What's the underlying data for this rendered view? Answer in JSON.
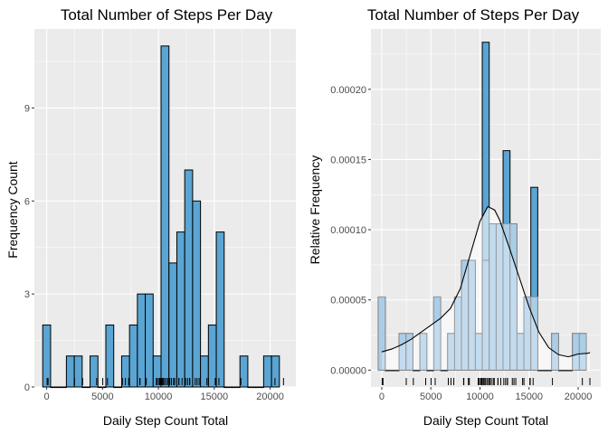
{
  "chart_data": [
    {
      "type": "bar",
      "title": "Total Number of Steps Per Day",
      "xlabel": "Daily Step Count Total",
      "ylabel": "Frequency Count",
      "xlim": [
        -1100,
        22300
      ],
      "ylim": [
        0,
        11.55
      ],
      "xticks": [
        0,
        5000,
        10000,
        15000,
        20000
      ],
      "xtick_labels": [
        "0",
        "5000",
        "10000",
        "15000",
        "20000"
      ],
      "yticks": [
        0,
        3,
        6,
        9
      ],
      "ytick_labels": [
        "0",
        "3",
        "6",
        "9"
      ],
      "bin_start": -353,
      "bin_width": 706,
      "values": [
        2,
        0,
        0,
        1,
        1,
        0,
        1,
        0,
        2,
        0,
        1,
        2,
        3,
        3,
        1,
        11,
        4,
        5,
        7,
        6,
        1,
        2,
        5,
        0,
        0,
        1,
        0,
        0,
        1,
        1
      ],
      "grid": true,
      "colors": {
        "bar_fill": "#5aa5d3",
        "bar_stroke": "#000000",
        "panel": "#ebebeb",
        "grid": "#ffffff"
      }
    },
    {
      "type": "bar",
      "title": "Total Number of Steps Per Day",
      "xlabel": "Daily Step Count Total",
      "ylabel": "Relative Frequency",
      "xlim": [
        -1100,
        22300
      ],
      "ylim": [
        -1.2e-05,
        0.000243
      ],
      "xticks": [
        0,
        5000,
        10000,
        15000,
        20000
      ],
      "xtick_labels": [
        "0",
        "5000",
        "10000",
        "15000",
        "20000"
      ],
      "yticks": [
        0,
        5e-05,
        0.0001,
        0.00015,
        0.0002
      ],
      "ytick_labels": [
        "0.00000",
        "0.00005",
        "0.00010",
        "0.00015",
        "0.00020"
      ],
      "bin_start": -353,
      "bin_width": 706,
      "values": [
        5.21e-05,
        0,
        0,
        2.61e-05,
        2.61e-05,
        0,
        2.61e-05,
        0,
        5.21e-05,
        0,
        2.61e-05,
        5.21e-05,
        7.82e-05,
        7.82e-05,
        2.61e-05,
        0.0002335,
        0.0001042,
        0.0001042,
        0.0001563,
        0.0001042,
        2.61e-05,
        5.21e-05,
        0.0001302,
        0,
        0,
        2.61e-05,
        0,
        0,
        2.61e-05,
        2.61e-05
      ],
      "inner_hist_values": [
        5.21e-05,
        0,
        0,
        2.61e-05,
        2.61e-05,
        0,
        2.61e-05,
        0,
        5.21e-05,
        0,
        2.61e-05,
        5.21e-05,
        7.82e-05,
        7.82e-05,
        2.61e-05,
        7.82e-05,
        0.0001042,
        0.0001042,
        0.0001042,
        0.0001042,
        2.61e-05,
        5.21e-05,
        5.21e-05,
        0,
        0,
        2.61e-05,
        0,
        0,
        2.61e-05,
        2.61e-05
      ],
      "density": {
        "x": [
          0,
          1000,
          2000,
          3000,
          4000,
          5000,
          6000,
          7000,
          8000,
          9000,
          10000,
          10800,
          11500,
          12000,
          13000,
          14000,
          15000,
          16000,
          17000,
          18000,
          19000,
          20000,
          21000,
          21200
        ],
        "y": [
          1.3e-05,
          1.5e-05,
          1.8e-05,
          2.2e-05,
          2.7e-05,
          3.2e-05,
          3.7e-05,
          4.4e-05,
          5.8e-05,
          8.2e-05,
          0.000106,
          0.0001165,
          0.000114,
          0.000107,
          8.7e-05,
          6.6e-05,
          4.5e-05,
          2.7e-05,
          1.6e-05,
          1.1e-05,
          9.5e-06,
          1.15e-05,
          1.2e-05,
          1.25e-05
        ]
      },
      "grid": true,
      "colors": {
        "bar_fill": "#5aa5d3",
        "bar_stroke": "#000000",
        "inner_fill": "#c6dbef",
        "inner_stroke": "#969696",
        "density_fill": "#ffffff",
        "panel": "#ebebeb",
        "grid": "#ffffff"
      }
    }
  ],
  "rug_x": [
    41,
    126,
    2492,
    3219,
    4472,
    5018,
    5441,
    6778,
    7047,
    7336,
    8334,
    8355,
    8821,
    8918,
    9819,
    9900,
    10056,
    10119,
    10139,
    10183,
    10304,
    10395,
    10439,
    10571,
    10600,
    10765,
    10890,
    11015,
    11162,
    11352,
    11458,
    11829,
    11834,
    12116,
    12426,
    12608,
    12787,
    12811,
    13294,
    13460,
    13646,
    14339,
    14478,
    15084,
    15098,
    15110,
    15414,
    17382,
    20427,
    21194
  ]
}
